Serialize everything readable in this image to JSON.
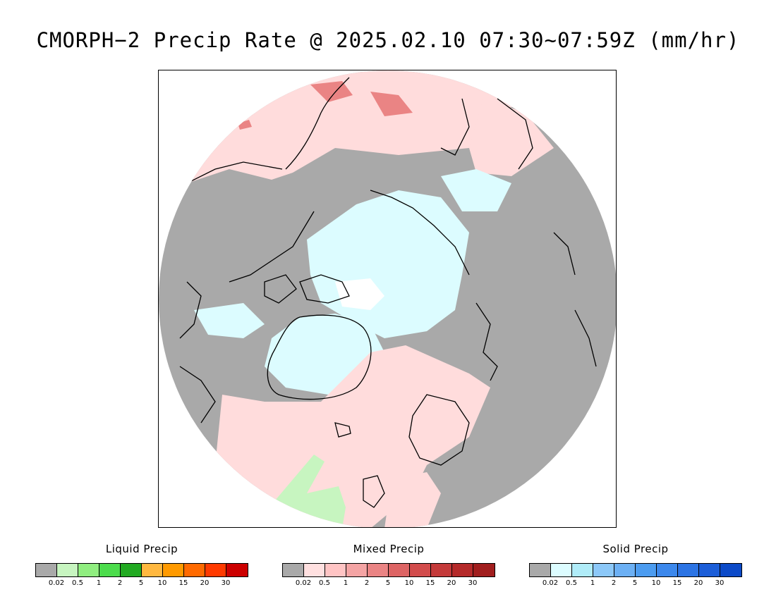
{
  "title": "CMORPH−2 Precip Rate @ 2025.02.10 07:30~07:59Z (mm/hr)",
  "colors": {
    "no_precip": "#a9a9a9",
    "background": "#ffffff",
    "coastline": "#000000"
  },
  "legends": [
    {
      "title": "Liquid Precip",
      "colors": [
        "#a9a9a9",
        "#c7f5c0",
        "#90ee80",
        "#4cdc4c",
        "#22aa22",
        "#ffb840",
        "#ff9a00",
        "#ff6a00",
        "#ff3a00",
        "#cc0000"
      ],
      "ticks": [
        "0.02",
        "0.5",
        "1",
        "2",
        "5",
        "10",
        "15",
        "20",
        "30"
      ]
    },
    {
      "title": "Mixed Precip",
      "colors": [
        "#a9a9a9",
        "#ffe0e0",
        "#ffc4c4",
        "#f4a4a4",
        "#ea8484",
        "#dd6464",
        "#d24c4c",
        "#c43a3a",
        "#b52a2a",
        "#a11e1e"
      ],
      "ticks": [
        "0.02",
        "0.5",
        "1",
        "2",
        "5",
        "10",
        "15",
        "20",
        "30"
      ]
    },
    {
      "title": "Solid Precip",
      "colors": [
        "#a9a9a9",
        "#dcfcff",
        "#b0ecf8",
        "#8cc8f8",
        "#6cb0f4",
        "#4c9cf0",
        "#3c88ec",
        "#2c74e4",
        "#1c5ed8",
        "#0c4ac8"
      ],
      "ticks": [
        "0.02",
        "0.5",
        "1",
        "2",
        "5",
        "10",
        "15",
        "20",
        "30"
      ]
    }
  ]
}
